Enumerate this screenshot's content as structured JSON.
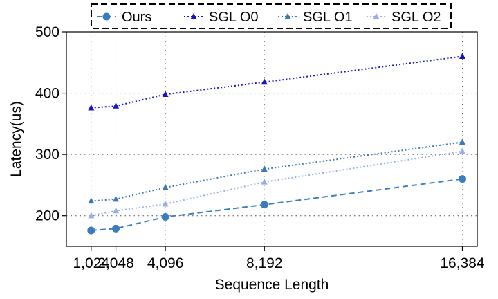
{
  "chart_data": {
    "type": "line",
    "xlabel": "Sequence Length",
    "ylabel": "Latency(us)",
    "x": [
      1024,
      2048,
      4096,
      8192,
      16384
    ],
    "x_tick_labels": [
      "1,024",
      "2,048",
      "4,096",
      "8,192",
      "16,384"
    ],
    "y_ticks": [
      200,
      300,
      400,
      500
    ],
    "y_tick_labels": [
      "200",
      "300",
      "400",
      "500"
    ],
    "xlim": [
      0,
      17000
    ],
    "ylim": [
      150,
      500
    ],
    "grid": true,
    "legend_position": "top",
    "legend_frame": "dashed",
    "series": [
      {
        "name": "Ours",
        "values": [
          176,
          179,
          198,
          218,
          260
        ],
        "color": "#3a7dbf",
        "marker": "circle",
        "line_style": "dashed"
      },
      {
        "name": "SGL O0",
        "values": [
          376,
          379,
          398,
          418,
          460
        ],
        "color": "#1414c8",
        "marker": "triangle",
        "line_style": "dotted"
      },
      {
        "name": "SGL O1",
        "values": [
          224,
          227,
          246,
          276,
          320
        ],
        "color": "#3b78b8",
        "marker": "triangle",
        "line_style": "dotted"
      },
      {
        "name": "SGL O2",
        "values": [
          200,
          208,
          219,
          255,
          305
        ],
        "color": "#98aee8",
        "marker": "triangle",
        "line_style": "dotted"
      }
    ]
  }
}
